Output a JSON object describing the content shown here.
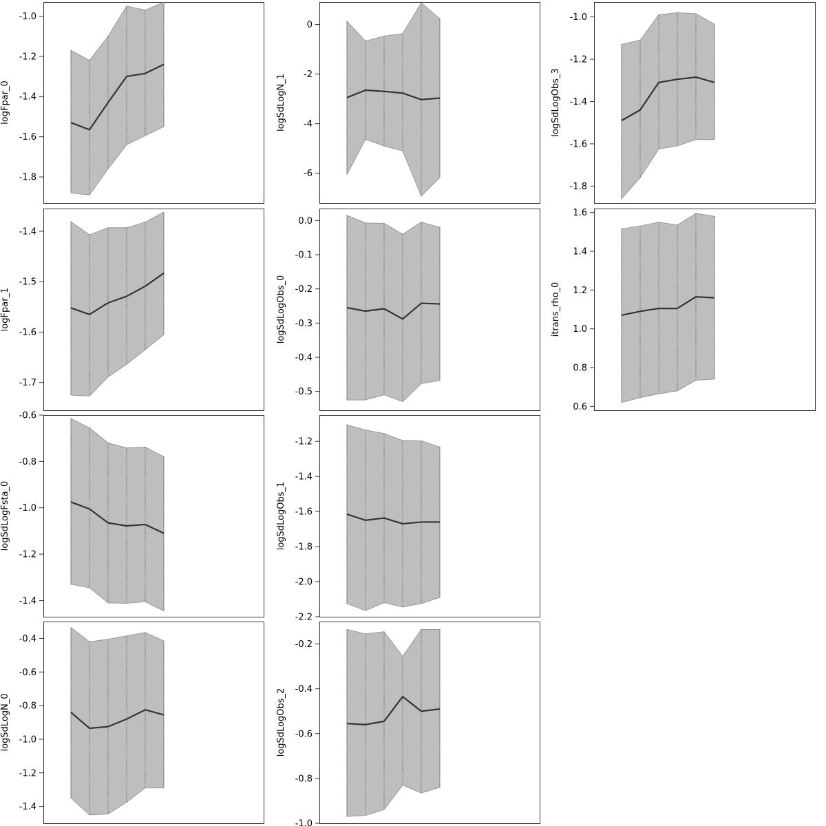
{
  "chart_data": [
    {
      "type": "area",
      "ylabel": "logFpar_0",
      "yticks": [
        -1.0,
        -1.2,
        -1.4,
        -1.6,
        -1.8
      ],
      "ylim": [
        -1.93,
        -0.93
      ],
      "x": [
        1,
        2,
        3,
        4,
        5,
        6
      ],
      "mean": [
        -1.53,
        -1.565,
        -1.43,
        -1.3,
        -1.285,
        -1.24
      ],
      "lower": [
        -1.88,
        -1.89,
        -1.76,
        -1.64,
        -1.595,
        -1.55
      ],
      "upper": [
        -1.17,
        -1.22,
        -1.1,
        -0.95,
        -0.97,
        -0.93
      ]
    },
    {
      "type": "area",
      "ylabel": "logSdLogN_1",
      "yticks": [
        0,
        -2,
        -4,
        -6
      ],
      "ylim": [
        -7.2,
        0.9
      ],
      "x": [
        1,
        2,
        3,
        4,
        5,
        6
      ],
      "mean": [
        -2.95,
        -2.65,
        -2.7,
        -2.77,
        -3.03,
        -2.97
      ],
      "lower": [
        -6.05,
        -4.63,
        -4.9,
        -5.1,
        -6.92,
        -6.17
      ],
      "upper": [
        0.13,
        -0.67,
        -0.47,
        -0.37,
        0.87,
        0.23
      ]
    },
    {
      "type": "area",
      "ylabel": "logSdLogObs_3",
      "yticks": [
        -1.0,
        -1.2,
        -1.4,
        -1.6,
        -1.8
      ],
      "ylim": [
        -1.88,
        -0.93
      ],
      "x": [
        1,
        2,
        3,
        4,
        5,
        6
      ],
      "mean": [
        -1.49,
        -1.44,
        -1.31,
        -1.295,
        -1.285,
        -1.31
      ],
      "lower": [
        -1.86,
        -1.76,
        -1.625,
        -1.61,
        -1.58,
        -1.58
      ],
      "upper": [
        -1.13,
        -1.11,
        -0.99,
        -0.98,
        -0.985,
        -1.035
      ]
    },
    {
      "type": "area",
      "ylabel": "logFpar_1",
      "yticks": [
        -1.4,
        -1.5,
        -1.6,
        -1.7
      ],
      "ylim": [
        -1.755,
        -1.355
      ],
      "x": [
        1,
        2,
        3,
        4,
        5,
        6
      ],
      "mean": [
        -1.552,
        -1.565,
        -1.542,
        -1.529,
        -1.509,
        -1.483
      ],
      "lower": [
        -1.725,
        -1.727,
        -1.689,
        -1.664,
        -1.635,
        -1.605
      ],
      "upper": [
        -1.381,
        -1.407,
        -1.393,
        -1.393,
        -1.382,
        -1.362
      ]
    },
    {
      "type": "area",
      "ylabel": "logSdLogObs_0",
      "yticks": [
        0.0,
        -0.1,
        -0.2,
        -0.3,
        -0.4,
        -0.5
      ],
      "ylim": [
        -0.555,
        0.035
      ],
      "x": [
        1,
        2,
        3,
        4,
        5,
        6
      ],
      "mean": [
        -0.255,
        -0.265,
        -0.258,
        -0.288,
        -0.242,
        -0.244
      ],
      "lower": [
        -0.525,
        -0.525,
        -0.51,
        -0.53,
        -0.477,
        -0.468
      ],
      "upper": [
        0.015,
        -0.007,
        -0.008,
        -0.04,
        -0.005,
        -0.02
      ]
    },
    {
      "type": "area",
      "ylabel": "itrans_rho_0",
      "yticks": [
        1.6,
        1.4,
        1.2,
        1.0,
        0.8,
        0.6
      ],
      "ylim": [
        0.58,
        1.62
      ],
      "x": [
        1,
        2,
        3,
        4,
        5,
        6
      ],
      "mean": [
        1.07,
        1.09,
        1.105,
        1.105,
        1.165,
        1.16
      ],
      "lower": [
        0.62,
        0.645,
        0.665,
        0.68,
        0.735,
        0.74
      ],
      "upper": [
        1.515,
        1.53,
        1.55,
        1.535,
        1.595,
        1.58
      ]
    },
    {
      "type": "area",
      "ylabel": "logSdLogFsta_0",
      "yticks": [
        -0.6,
        -0.8,
        -1.0,
        -1.2,
        -1.4
      ],
      "ylim": [
        -1.47,
        -0.6
      ],
      "x": [
        1,
        2,
        3,
        4,
        5,
        6
      ],
      "mean": [
        -0.975,
        -1.005,
        -1.065,
        -1.078,
        -1.072,
        -1.11
      ],
      "lower": [
        -1.33,
        -1.345,
        -1.41,
        -1.412,
        -1.405,
        -1.445
      ],
      "upper": [
        -0.615,
        -0.655,
        -0.72,
        -0.742,
        -0.738,
        -0.78
      ]
    },
    {
      "type": "area",
      "ylabel": "logSdLogObs_1",
      "yticks": [
        -1.2,
        -1.4,
        -1.6,
        -1.8,
        -2.0,
        -2.2
      ],
      "ylim": [
        -2.2,
        -1.05
      ],
      "x": [
        1,
        2,
        3,
        4,
        5,
        6
      ],
      "mean": [
        -1.615,
        -1.65,
        -1.637,
        -1.67,
        -1.66,
        -1.66
      ],
      "lower": [
        -2.125,
        -2.165,
        -2.12,
        -2.145,
        -2.125,
        -2.09
      ],
      "upper": [
        -1.105,
        -1.135,
        -1.155,
        -1.195,
        -1.197,
        -1.232
      ]
    },
    {
      "type": "area",
      "ylabel": "logSdLogN_0",
      "yticks": [
        -0.4,
        -0.6,
        -0.8,
        -1.0,
        -1.2,
        -1.4
      ],
      "ylim": [
        -1.5,
        -0.3
      ],
      "x": [
        1,
        2,
        3,
        4,
        5,
        6
      ],
      "mean": [
        -0.84,
        -0.935,
        -0.925,
        -0.88,
        -0.825,
        -0.855
      ],
      "lower": [
        -1.35,
        -1.45,
        -1.445,
        -1.375,
        -1.29,
        -1.29
      ],
      "upper": [
        -0.335,
        -0.42,
        -0.405,
        -0.385,
        -0.365,
        -0.415
      ]
    },
    {
      "type": "area",
      "ylabel": "logSdLogObs_2",
      "yticks": [
        -0.2,
        -0.4,
        -0.6,
        -0.8,
        -1.0
      ],
      "ylim": [
        -1.0,
        -0.1
      ],
      "x": [
        1,
        2,
        3,
        4,
        5,
        6
      ],
      "mean": [
        -0.555,
        -0.56,
        -0.545,
        -0.435,
        -0.5,
        -0.49
      ],
      "lower": [
        -0.97,
        -0.965,
        -0.94,
        -0.83,
        -0.865,
        -0.84
      ],
      "upper": [
        -0.135,
        -0.155,
        -0.145,
        -0.255,
        -0.135,
        -0.135
      ]
    }
  ]
}
